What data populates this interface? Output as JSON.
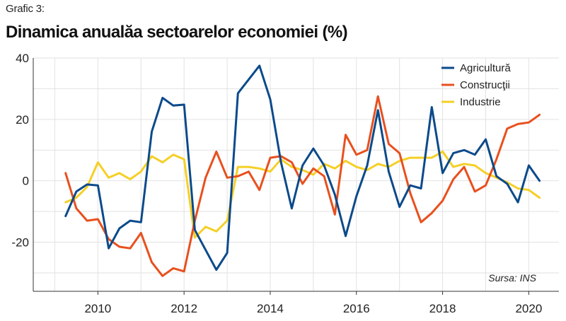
{
  "header": {
    "kicker": "Grafic 3:",
    "title": "Dinamica anualăa sectoarelor economiei (%)"
  },
  "source_note": "Sursa: INS",
  "chart_data": {
    "type": "line",
    "title": "Dinamica anualăa sectoarelor economiei (%)",
    "xlabel": "",
    "ylabel": "",
    "xlim": [
      2008.5,
      2020.7
    ],
    "ylim": [
      -36,
      40
    ],
    "xticks": [
      2010,
      2012,
      2014,
      2016,
      2018,
      2020
    ],
    "yticks": [
      40,
      20,
      0,
      -20
    ],
    "grid": true,
    "legend_position": "top-right",
    "series": [
      {
        "name": "Agricultură",
        "color": "#0b4a8b",
        "points": [
          [
            2009.25,
            -11.5
          ],
          [
            2009.5,
            -3.5
          ],
          [
            2009.75,
            -1.2
          ],
          [
            2010.0,
            -1.5
          ],
          [
            2010.25,
            -22.0
          ],
          [
            2010.5,
            -15.5
          ],
          [
            2010.75,
            -13.0
          ],
          [
            2011.0,
            -13.5
          ],
          [
            2011.25,
            16.0
          ],
          [
            2011.5,
            27.0
          ],
          [
            2011.75,
            24.5
          ],
          [
            2012.0,
            24.8
          ],
          [
            2012.25,
            -16.0
          ],
          [
            2012.5,
            -22.5
          ],
          [
            2012.75,
            -29.0
          ],
          [
            2013.0,
            -23.5
          ],
          [
            2013.25,
            28.5
          ],
          [
            2013.5,
            33.0
          ],
          [
            2013.75,
            37.5
          ],
          [
            2014.0,
            26.5
          ],
          [
            2014.25,
            6.0
          ],
          [
            2014.5,
            -9.0
          ],
          [
            2014.75,
            5.0
          ],
          [
            2015.0,
            10.5
          ],
          [
            2015.25,
            5.0
          ],
          [
            2015.5,
            -4.5
          ],
          [
            2015.75,
            -18.0
          ],
          [
            2016.0,
            -5.0
          ],
          [
            2016.25,
            5.0
          ],
          [
            2016.5,
            23.0
          ],
          [
            2016.75,
            3.0
          ],
          [
            2017.0,
            -8.5
          ],
          [
            2017.25,
            -1.5
          ],
          [
            2017.5,
            -2.5
          ],
          [
            2017.75,
            24.0
          ],
          [
            2018.0,
            2.5
          ],
          [
            2018.25,
            9.0
          ],
          [
            2018.5,
            10.0
          ],
          [
            2018.75,
            8.5
          ],
          [
            2019.0,
            13.5
          ],
          [
            2019.25,
            1.5
          ],
          [
            2019.5,
            -1.0
          ],
          [
            2019.75,
            -7.0
          ],
          [
            2020.0,
            5.0
          ],
          [
            2020.25,
            0.0
          ]
        ]
      },
      {
        "name": "Construcţii",
        "color": "#e8501e",
        "points": [
          [
            2009.25,
            2.5
          ],
          [
            2009.5,
            -9.0
          ],
          [
            2009.75,
            -13.0
          ],
          [
            2010.0,
            -12.5
          ],
          [
            2010.25,
            -19.0
          ],
          [
            2010.5,
            -21.5
          ],
          [
            2010.75,
            -22.0
          ],
          [
            2011.0,
            -17.0
          ],
          [
            2011.25,
            -26.5
          ],
          [
            2011.5,
            -31.0
          ],
          [
            2011.75,
            -28.5
          ],
          [
            2012.0,
            -29.5
          ],
          [
            2012.25,
            -13.0
          ],
          [
            2012.5,
            1.0
          ],
          [
            2012.75,
            9.5
          ],
          [
            2013.0,
            1.0
          ],
          [
            2013.25,
            1.5
          ],
          [
            2013.5,
            3.0
          ],
          [
            2013.75,
            -3.0
          ],
          [
            2014.0,
            7.5
          ],
          [
            2014.25,
            8.0
          ],
          [
            2014.5,
            6.0
          ],
          [
            2014.75,
            -1.0
          ],
          [
            2015.0,
            4.0
          ],
          [
            2015.25,
            1.5
          ],
          [
            2015.5,
            -11.0
          ],
          [
            2015.75,
            15.0
          ],
          [
            2016.0,
            8.5
          ],
          [
            2016.25,
            10.0
          ],
          [
            2016.5,
            27.5
          ],
          [
            2016.75,
            12.0
          ],
          [
            2017.0,
            9.0
          ],
          [
            2017.25,
            -4.0
          ],
          [
            2017.5,
            -13.5
          ],
          [
            2017.75,
            -10.5
          ],
          [
            2018.0,
            -6.5
          ],
          [
            2018.25,
            0.5
          ],
          [
            2018.5,
            4.5
          ],
          [
            2018.75,
            -3.5
          ],
          [
            2019.0,
            -1.5
          ],
          [
            2019.25,
            7.0
          ],
          [
            2019.5,
            17.0
          ],
          [
            2019.75,
            18.5
          ],
          [
            2020.0,
            19.0
          ],
          [
            2020.25,
            21.5
          ]
        ]
      },
      {
        "name": "Industrie",
        "color": "#f5cf26",
        "points": [
          [
            2009.25,
            -7.0
          ],
          [
            2009.5,
            -5.5
          ],
          [
            2009.75,
            -2.0
          ],
          [
            2010.0,
            6.0
          ],
          [
            2010.25,
            1.0
          ],
          [
            2010.5,
            2.5
          ],
          [
            2010.75,
            0.5
          ],
          [
            2011.0,
            3.0
          ],
          [
            2011.25,
            8.0
          ],
          [
            2011.5,
            6.0
          ],
          [
            2011.75,
            8.5
          ],
          [
            2012.0,
            7.0
          ],
          [
            2012.25,
            -18.5
          ],
          [
            2012.5,
            -15.0
          ],
          [
            2012.75,
            -16.5
          ],
          [
            2013.0,
            -13.0
          ],
          [
            2013.25,
            4.5
          ],
          [
            2013.5,
            4.5
          ],
          [
            2013.75,
            4.0
          ],
          [
            2014.0,
            3.0
          ],
          [
            2014.25,
            7.0
          ],
          [
            2014.5,
            4.5
          ],
          [
            2014.75,
            3.5
          ],
          [
            2015.0,
            2.0
          ],
          [
            2015.25,
            5.5
          ],
          [
            2015.5,
            4.0
          ],
          [
            2015.75,
            6.5
          ],
          [
            2016.0,
            4.5
          ],
          [
            2016.25,
            3.5
          ],
          [
            2016.5,
            5.5
          ],
          [
            2016.75,
            4.5
          ],
          [
            2017.0,
            6.5
          ],
          [
            2017.25,
            7.5
          ],
          [
            2017.5,
            7.5
          ],
          [
            2017.75,
            7.5
          ],
          [
            2018.0,
            9.5
          ],
          [
            2018.25,
            4.5
          ],
          [
            2018.5,
            5.5
          ],
          [
            2018.75,
            5.0
          ],
          [
            2019.0,
            2.5
          ],
          [
            2019.25,
            1.0
          ],
          [
            2019.5,
            -0.5
          ],
          [
            2019.75,
            -2.5
          ],
          [
            2020.0,
            -3.0
          ],
          [
            2020.25,
            -5.5
          ]
        ]
      }
    ]
  }
}
